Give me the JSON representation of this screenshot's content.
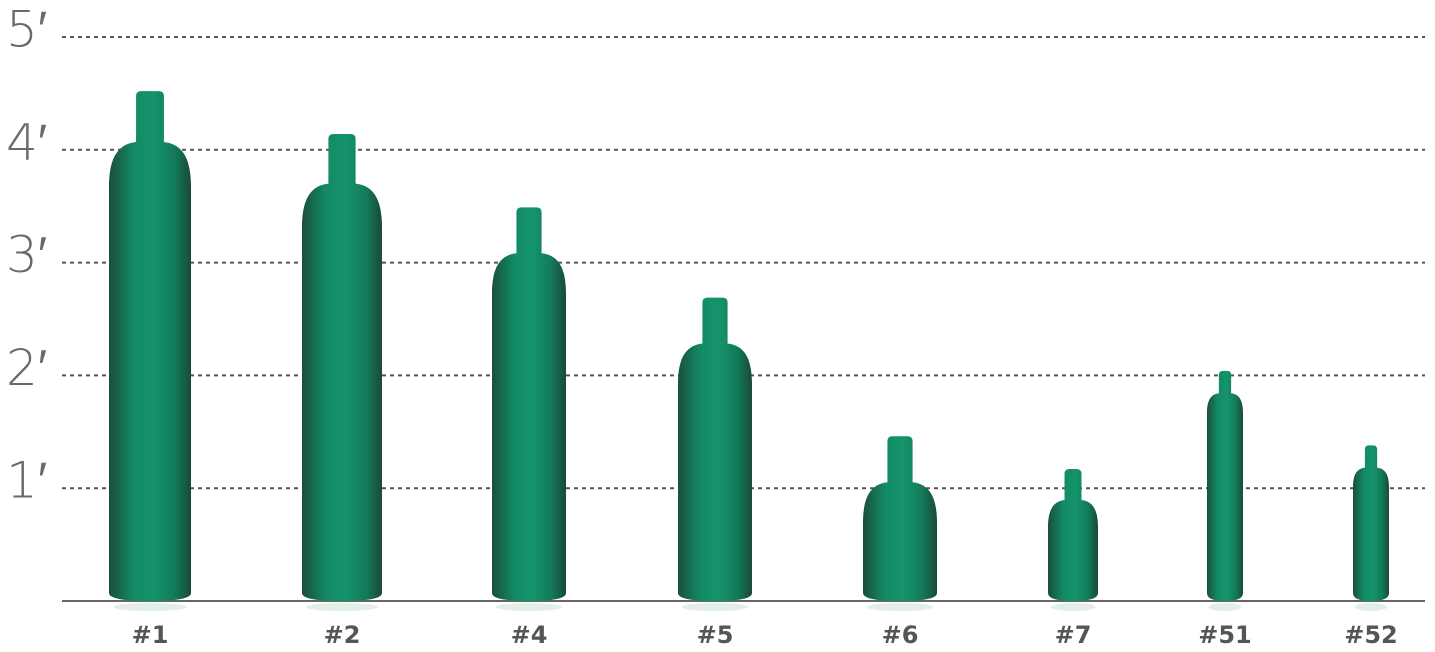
{
  "chart_data": {
    "type": "cylinder",
    "categories": [
      "#1",
      "#2",
      "#4",
      "#5",
      "#6",
      "#7",
      "#51",
      "#52"
    ],
    "values": [
      4.52,
      4.14,
      3.49,
      2.69,
      1.46,
      1.17,
      2.04,
      1.38
    ],
    "color": "#14906a",
    "ylim": [
      0,
      5
    ],
    "yticks": [
      {
        "value": 1,
        "label": "1′"
      },
      {
        "value": 2,
        "label": "2′"
      },
      {
        "value": 3,
        "label": "3′"
      },
      {
        "value": 4,
        "label": "4′"
      },
      {
        "value": 5,
        "label": "5′"
      }
    ],
    "grid": true
  }
}
